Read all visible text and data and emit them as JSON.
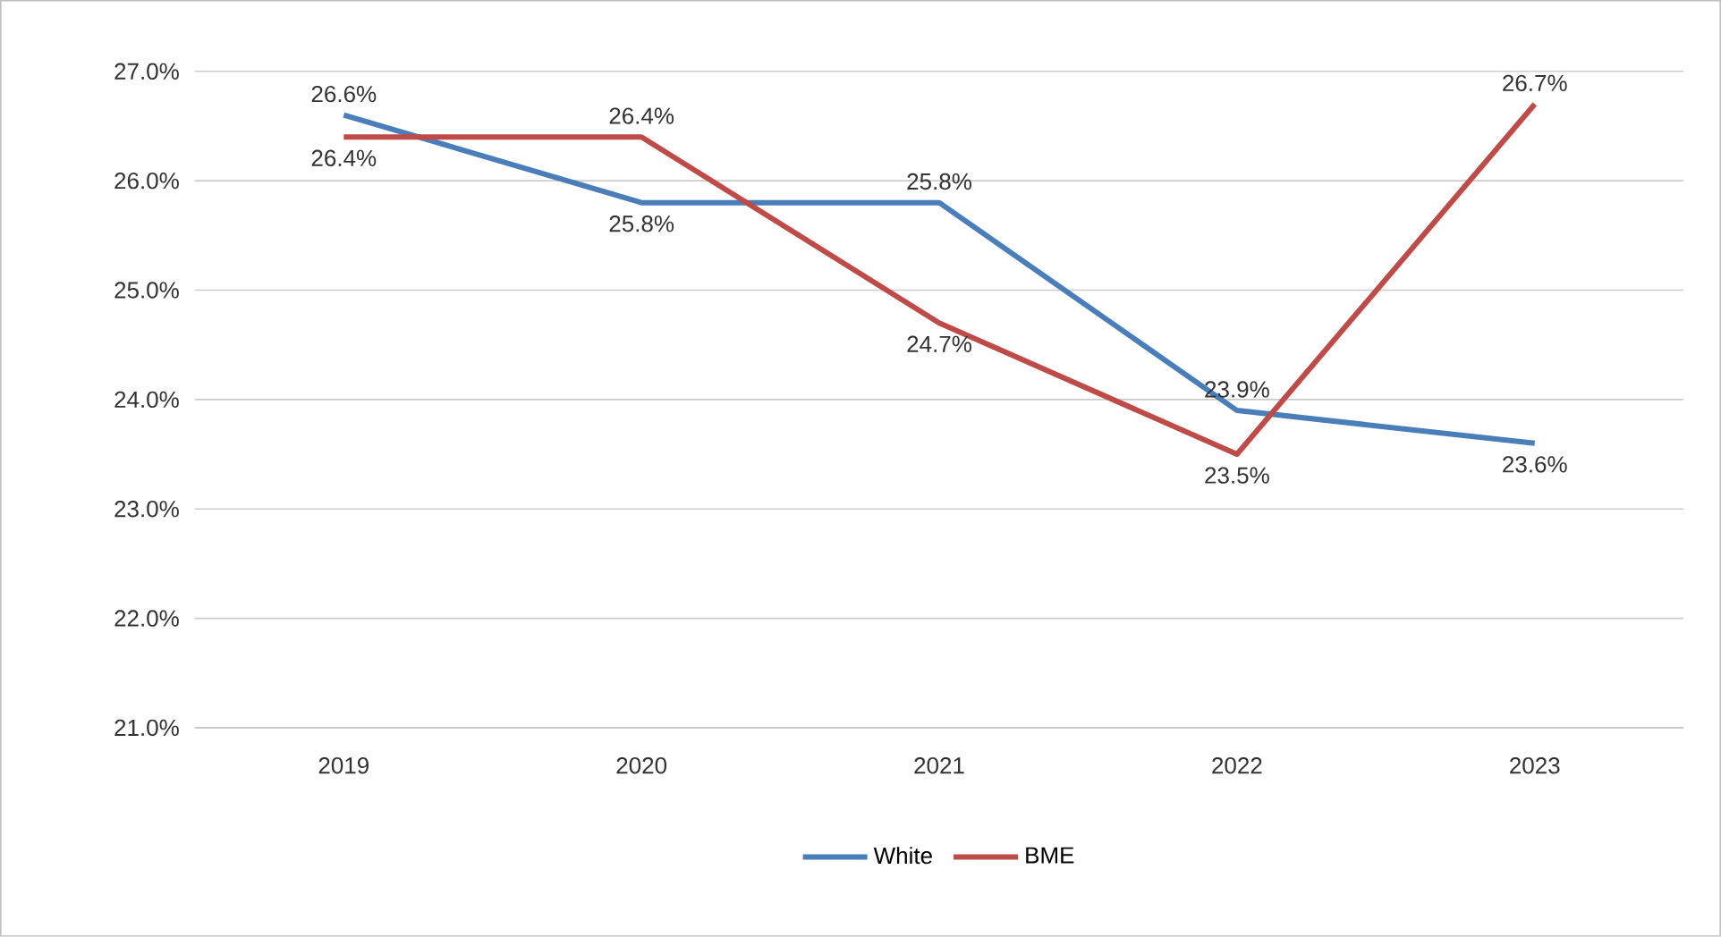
{
  "chart_data": {
    "type": "line",
    "categories": [
      "2019",
      "2020",
      "2021",
      "2022",
      "2023"
    ],
    "series": [
      {
        "name": "White",
        "color": "#4a7ebb",
        "values": [
          26.6,
          25.8,
          25.8,
          23.9,
          23.6
        ],
        "value_labels": [
          "26.6%",
          "25.8%",
          "25.8%",
          "23.9%",
          "23.6%"
        ]
      },
      {
        "name": "BME",
        "color": "#be4b48",
        "values": [
          26.4,
          26.4,
          24.7,
          23.5,
          26.7
        ],
        "value_labels": [
          "26.4%",
          "26.4%",
          "24.7%",
          "23.5%",
          "26.7%"
        ]
      }
    ],
    "ylim": [
      21,
      27
    ],
    "yticks": [
      {
        "value": 21,
        "label": "21.0%"
      },
      {
        "value": 22,
        "label": "22.0%"
      },
      {
        "value": 23,
        "label": "23.0%"
      },
      {
        "value": 24,
        "label": "24.0%"
      },
      {
        "value": 25,
        "label": "25.0%"
      },
      {
        "value": 26,
        "label": "26.0%"
      },
      {
        "value": 27,
        "label": "27.0%"
      }
    ],
    "grid": "y",
    "legend": "bottom",
    "marker": "none",
    "line_style": "solid"
  }
}
